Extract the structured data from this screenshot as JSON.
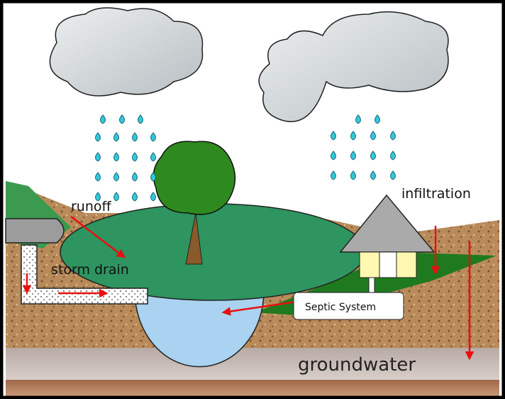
{
  "labels": {
    "runoff": "runoff",
    "storm_drain": "storm drain",
    "infiltration": "infiltration",
    "septic_system": "Septic System",
    "groundwater": "groundwater"
  }
}
